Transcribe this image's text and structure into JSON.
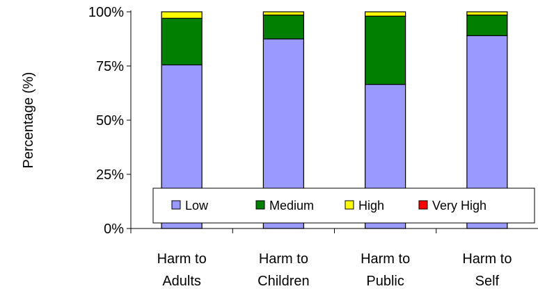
{
  "chart_data": {
    "type": "bar",
    "stacked": true,
    "ylabel": "Percentage (%)",
    "xlabel": "",
    "ylim": [
      0,
      100
    ],
    "yticks": [
      "0%",
      "25%",
      "50%",
      "75%",
      "100%"
    ],
    "ytick_values": [
      0,
      25,
      50,
      75,
      100
    ],
    "categories": [
      [
        "Harm to",
        "Adults"
      ],
      [
        "Harm to",
        "Children"
      ],
      [
        "Harm to",
        "Public"
      ],
      [
        "Harm to",
        "Self"
      ]
    ],
    "series": [
      {
        "name": "Low",
        "color": "#9999ff",
        "values": [
          75.5,
          87.5,
          66.5,
          89
        ]
      },
      {
        "name": "Medium",
        "color": "#007f00",
        "values": [
          21.5,
          11,
          31.5,
          9.5
        ]
      },
      {
        "name": "High",
        "color": "#ffff00",
        "values": [
          3,
          1.5,
          2,
          1.5
        ]
      },
      {
        "name": "Very High",
        "color": "#ff0000",
        "values": [
          0,
          0,
          0,
          0
        ]
      }
    ],
    "legend_position": "bottom-inside",
    "grid": false
  }
}
